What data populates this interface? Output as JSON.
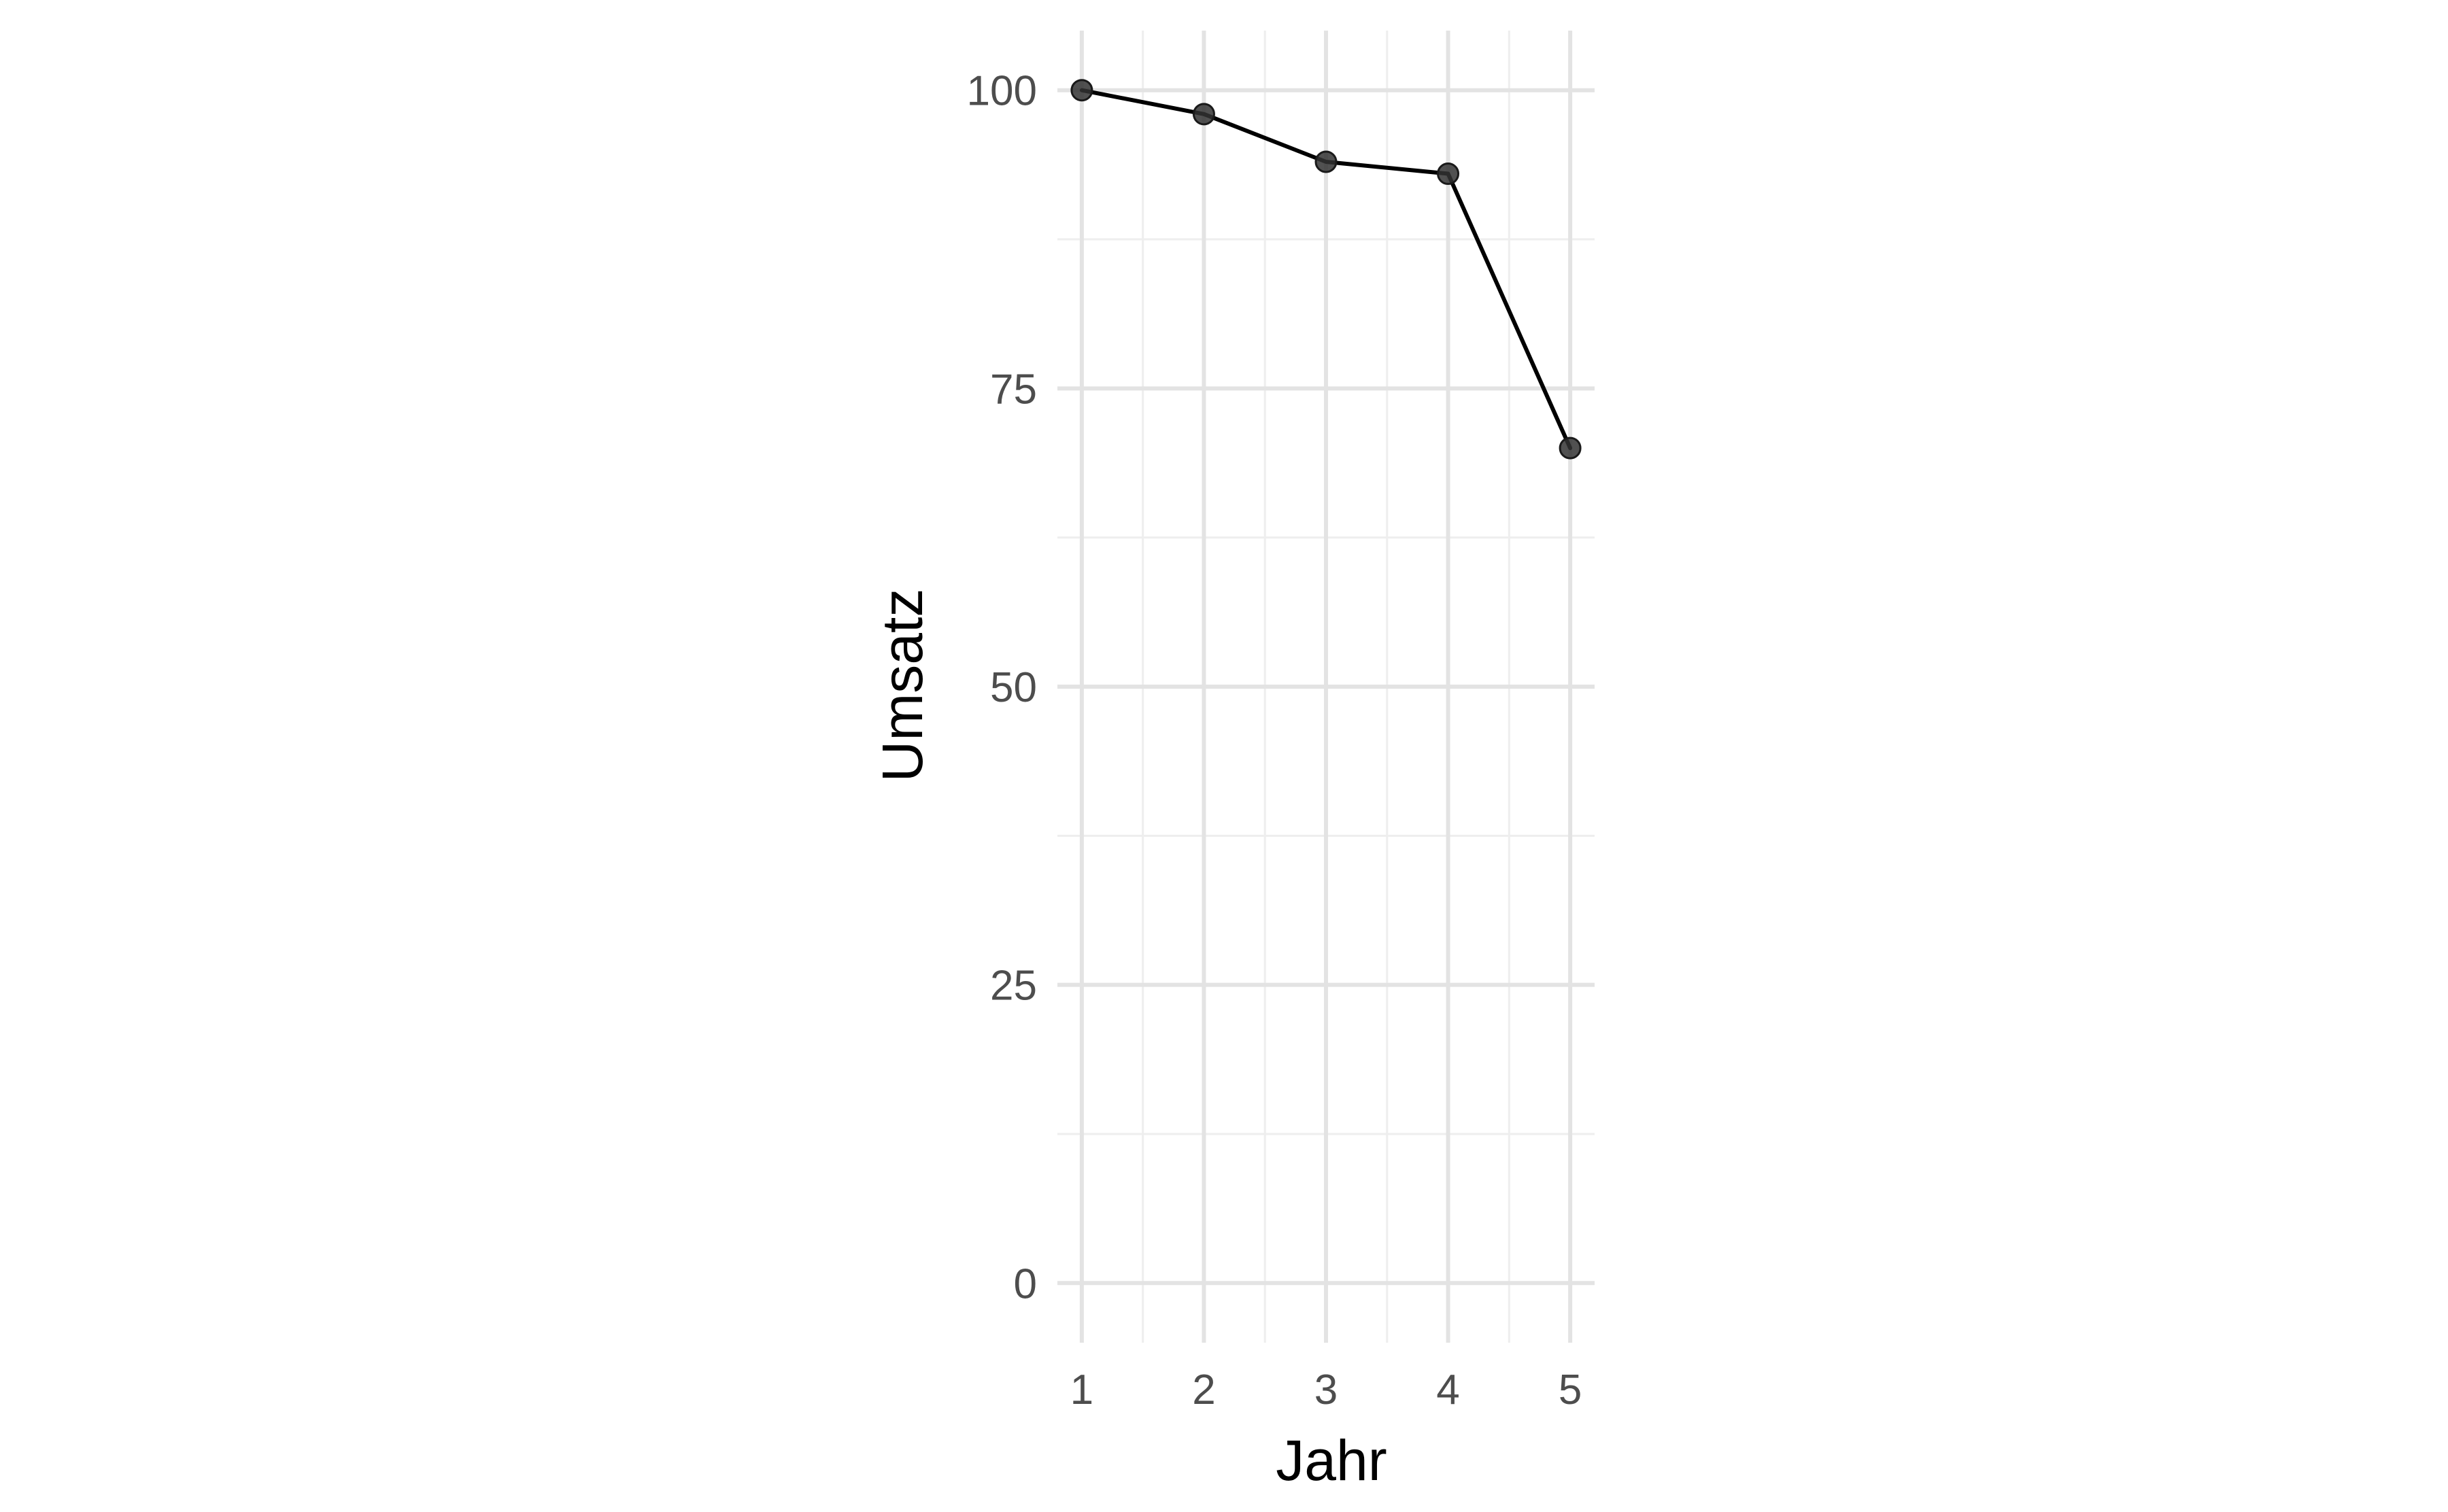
{
  "chart_data": {
    "type": "line",
    "x": [
      1,
      2,
      3,
      4,
      5
    ],
    "series": [
      {
        "values": [
          100,
          98,
          94,
          93,
          70
        ]
      }
    ],
    "xlabel": "Jahr",
    "ylabel": "Umsatz",
    "xlim": [
      0.8,
      5.2
    ],
    "ylim": [
      -5,
      105
    ],
    "xticks": [
      1,
      2,
      3,
      4,
      5
    ],
    "xtick_labels": [
      "1",
      "2",
      "3",
      "4",
      "5"
    ],
    "yticks": [
      0,
      25,
      50,
      75,
      100
    ],
    "ytick_labels": [
      "0",
      "25",
      "50",
      "75",
      "100"
    ],
    "grid": true,
    "legend": "none",
    "colors": {
      "line": "#000000",
      "point": "#333333",
      "grid_major": "#e3e3e3",
      "grid_minor": "#eeeeee"
    }
  }
}
